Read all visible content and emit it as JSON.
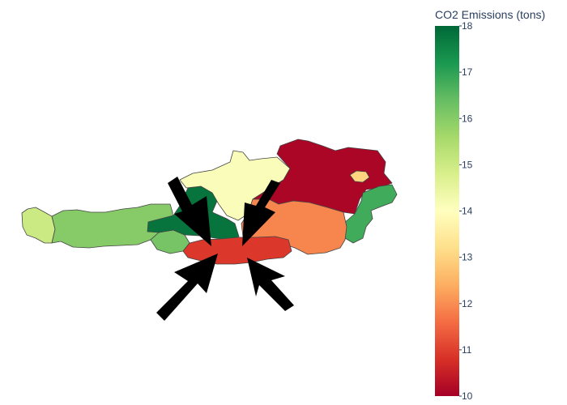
{
  "map": {
    "colorscale": {
      "title": "CO2 Emissions (tons)",
      "min": 10,
      "max": 18,
      "ticks": [
        "10",
        "11",
        "12",
        "13",
        "14",
        "15",
        "16",
        "17",
        "18"
      ],
      "palette": "RdYlGn",
      "stops": [
        "#a50026",
        "#d73027",
        "#f46d43",
        "#fdae61",
        "#fee08b",
        "#ffffbf",
        "#d9ef8b",
        "#a6d96a",
        "#66bd63",
        "#1a9850",
        "#006837"
      ]
    },
    "regions": [
      {
        "id": "vorarlberg",
        "value": 15.0
      },
      {
        "id": "tirol",
        "value": 16.0
      },
      {
        "id": "salzburg",
        "value": 17.8
      },
      {
        "id": "osttirol",
        "value": 16.2
      },
      {
        "id": "oberoesterreich",
        "value": 14.1
      },
      {
        "id": "kaernten",
        "value": 10.9
      },
      {
        "id": "steiermark",
        "value": 11.9
      },
      {
        "id": "niederoesterreich",
        "value": 10.1
      },
      {
        "id": "wien",
        "value": 13.0
      },
      {
        "id": "burgenland",
        "value": 16.8
      }
    ],
    "annotation": "arrows-pointing-at-kaernten"
  }
}
